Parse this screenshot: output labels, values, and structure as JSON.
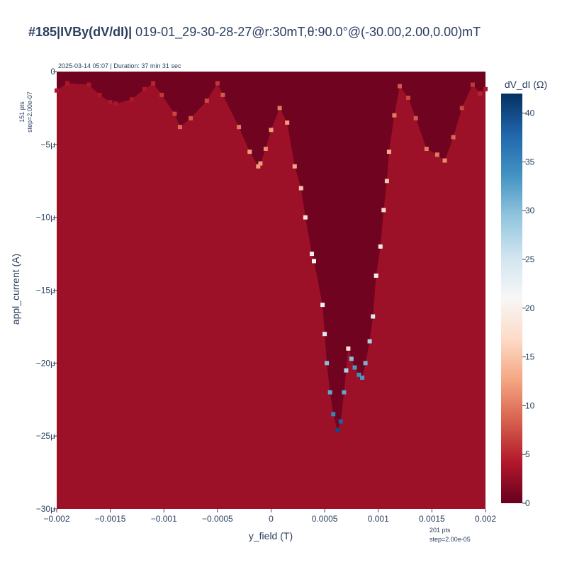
{
  "chart_data": {
    "type": "heatmap",
    "title_bold": "#185|IVBy(dV/dI)|",
    "title_rest": " 019-01_29-30-28-27@r:30mT,θ:90.0°@(-30.00,2.00,0.00)mT",
    "subtitle": "2025-03-14 05:07 | Duration: 37 min 31 sec",
    "xlabel": "y_field (T)",
    "ylabel": "appl_current (A)",
    "x_range": [
      -0.002,
      0.002
    ],
    "y_range": [
      -3e-05,
      0
    ],
    "x_ticks": [
      -0.002,
      -0.0015,
      -0.001,
      -0.0005,
      0,
      0.0005,
      0.001,
      0.0015,
      0.002
    ],
    "x_tick_labels": [
      "−0.002",
      "−0.0015",
      "−0.001",
      "−0.0005",
      "0",
      "0.0005",
      "0.001",
      "0.0015",
      "0.002"
    ],
    "y_ticks": [
      0,
      -5e-06,
      -1e-05,
      -1.5e-05,
      -2e-05,
      -2.5e-05,
      -3e-05
    ],
    "y_tick_labels": [
      "0",
      "−5μ",
      "−10μ",
      "−15μ",
      "−20μ",
      "−25μ",
      "−30μ"
    ],
    "y_points_note": "151 pts",
    "y_step_note": "step=2.00e-07",
    "x_points_note": "201 pts",
    "x_step_note": "step=2.00e-05",
    "colorbar": {
      "title": "dV_dI (Ω)",
      "range": [
        0,
        42
      ],
      "ticks": [
        0,
        5,
        10,
        15,
        20,
        25,
        30,
        35,
        40
      ],
      "tick_labels": [
        "0",
        "5",
        "10",
        "15",
        "20",
        "25",
        "30",
        "35",
        "40"
      ],
      "colorscale": [
        "#67001f",
        "#b2182b",
        "#d6604d",
        "#f4a582",
        "#fddbc7",
        "#f7f7f7",
        "#d1e5f0",
        "#92c5de",
        "#4393c3",
        "#2166ac",
        "#053061"
      ]
    },
    "values": {
      "normal_state": 3,
      "superconducting_state": 0.5
    },
    "critical_current_boundary": [
      {
        "x": -0.002,
        "y": -1.3e-06,
        "value": 4
      },
      {
        "x": -0.0019,
        "y": -8e-07,
        "value": 4
      },
      {
        "x": -0.0017,
        "y": -9e-07,
        "value": 4
      },
      {
        "x": -0.0016,
        "y": -1.6e-06,
        "value": 4
      },
      {
        "x": -0.0015,
        "y": -2.1e-06,
        "value": 4
      },
      {
        "x": -0.00145,
        "y": -2.2e-06,
        "value": 4
      },
      {
        "x": -0.0013,
        "y": -1.9e-06,
        "value": 4
      },
      {
        "x": -0.00118,
        "y": -1.2e-06,
        "value": 4
      },
      {
        "x": -0.0011,
        "y": -8e-07,
        "value": 5
      },
      {
        "x": -0.00102,
        "y": -1.6e-06,
        "value": 6
      },
      {
        "x": -0.0009,
        "y": -2.9e-06,
        "value": 7
      },
      {
        "x": -0.00085,
        "y": -3.8e-06,
        "value": 9
      },
      {
        "x": -0.00075,
        "y": -3.2e-06,
        "value": 8
      },
      {
        "x": -0.0006,
        "y": -2e-06,
        "value": 7
      },
      {
        "x": -0.0005,
        "y": -8e-07,
        "value": 6
      },
      {
        "x": -0.00045,
        "y": -1.6e-06,
        "value": 8
      },
      {
        "x": -0.0003,
        "y": -3.8e-06,
        "value": 10
      },
      {
        "x": -0.0002,
        "y": -5.5e-06,
        "value": 12
      },
      {
        "x": -0.00012,
        "y": -6.5e-06,
        "value": 12
      },
      {
        "x": -0.0001,
        "y": -6.3e-06,
        "value": 12
      },
      {
        "x": -5e-05,
        "y": -5.3e-06,
        "value": 11
      },
      {
        "x": 0.0,
        "y": -4e-06,
        "value": 12
      },
      {
        "x": 8e-05,
        "y": -2.5e-06,
        "value": 10
      },
      {
        "x": 0.00015,
        "y": -3.5e-06,
        "value": 12
      },
      {
        "x": 0.00022,
        "y": -6.5e-06,
        "value": 13
      },
      {
        "x": 0.00028,
        "y": -8e-06,
        "value": 15
      },
      {
        "x": 0.00032,
        "y": -1e-05,
        "value": 18
      },
      {
        "x": 0.00038,
        "y": -1.25e-05,
        "value": 20
      },
      {
        "x": 0.0004,
        "y": -1.3e-05,
        "value": 21
      },
      {
        "x": 0.00048,
        "y": -1.6e-05,
        "value": 22
      },
      {
        "x": 0.0005,
        "y": -1.8e-05,
        "value": 24
      },
      {
        "x": 0.00052,
        "y": -2e-05,
        "value": 30
      },
      {
        "x": 0.00055,
        "y": -2.2e-05,
        "value": 32
      },
      {
        "x": 0.00058,
        "y": -2.35e-05,
        "value": 35
      },
      {
        "x": 0.00062,
        "y": -2.46e-05,
        "value": 40
      },
      {
        "x": 0.00065,
        "y": -2.4e-05,
        "value": 38
      },
      {
        "x": 0.00068,
        "y": -2.2e-05,
        "value": 32
      },
      {
        "x": 0.0007,
        "y": -2.05e-05,
        "value": 28
      },
      {
        "x": 0.00072,
        "y": -1.9e-05,
        "value": 18
      },
      {
        "x": 0.00075,
        "y": -1.97e-05,
        "value": 30
      },
      {
        "x": 0.00078,
        "y": -2.03e-05,
        "value": 33
      },
      {
        "x": 0.00082,
        "y": -2.08e-05,
        "value": 34
      },
      {
        "x": 0.00085,
        "y": -2.1e-05,
        "value": 33
      },
      {
        "x": 0.00088,
        "y": -2e-05,
        "value": 31
      },
      {
        "x": 0.00092,
        "y": -1.85e-05,
        "value": 28
      },
      {
        "x": 0.00095,
        "y": -1.68e-05,
        "value": 24
      },
      {
        "x": 0.00098,
        "y": -1.4e-05,
        "value": 20
      },
      {
        "x": 0.00102,
        "y": -1.2e-05,
        "value": 19
      },
      {
        "x": 0.00105,
        "y": -9.5e-06,
        "value": 17
      },
      {
        "x": 0.00108,
        "y": -7.5e-06,
        "value": 15
      },
      {
        "x": 0.0011,
        "y": -5.5e-06,
        "value": 13
      },
      {
        "x": 0.00115,
        "y": -3e-06,
        "value": 10
      },
      {
        "x": 0.0012,
        "y": -1e-06,
        "value": 8
      },
      {
        "x": 0.00128,
        "y": -1.8e-06,
        "value": 7
      },
      {
        "x": 0.00135,
        "y": -3.2e-06,
        "value": 8
      },
      {
        "x": 0.00145,
        "y": -5.3e-06,
        "value": 10
      },
      {
        "x": 0.00155,
        "y": -5.7e-06,
        "value": 10
      },
      {
        "x": 0.00162,
        "y": -6.1e-06,
        "value": 11
      },
      {
        "x": 0.0017,
        "y": -4.5e-06,
        "value": 9
      },
      {
        "x": 0.00178,
        "y": -2.5e-06,
        "value": 7
      },
      {
        "x": 0.00188,
        "y": -9e-07,
        "value": 6
      },
      {
        "x": 0.00195,
        "y": -1.5e-06,
        "value": 5
      },
      {
        "x": 0.002,
        "y": -1.2e-06,
        "value": 4
      }
    ]
  }
}
